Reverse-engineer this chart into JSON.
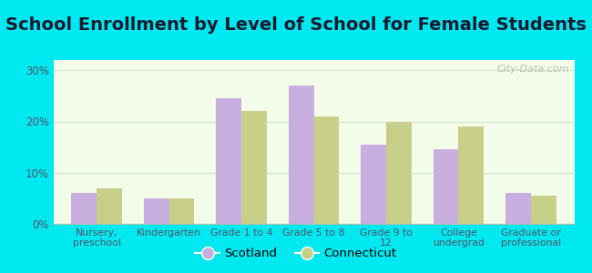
{
  "title": "School Enrollment by Level of School for Female Students",
  "categories": [
    "Nursery,\npreschool",
    "Kindergarten",
    "Grade 1 to 4",
    "Grade 5 to 8",
    "Grade 9 to\n12",
    "College\nundergrad",
    "Graduate or\nprofessional"
  ],
  "scotland": [
    6.0,
    5.0,
    24.5,
    27.0,
    15.5,
    14.5,
    6.0
  ],
  "connecticut": [
    7.0,
    5.0,
    22.0,
    21.0,
    20.0,
    19.0,
    5.5
  ],
  "scotland_color": "#c9aee0",
  "connecticut_color": "#c8cf88",
  "background_outer": "#00e8f0",
  "background_inner": "#f2fce8",
  "ylim": [
    0,
    32
  ],
  "yticks": [
    0,
    10,
    20,
    30
  ],
  "ytick_labels": [
    "0%",
    "10%",
    "20%",
    "30%"
  ],
  "title_fontsize": 14,
  "title_color": "#1a1a2e",
  "legend_labels": [
    "Scotland",
    "Connecticut"
  ],
  "watermark": "City-Data.com",
  "tick_label_color": "#555566",
  "grid_color": "#d8e8d0"
}
